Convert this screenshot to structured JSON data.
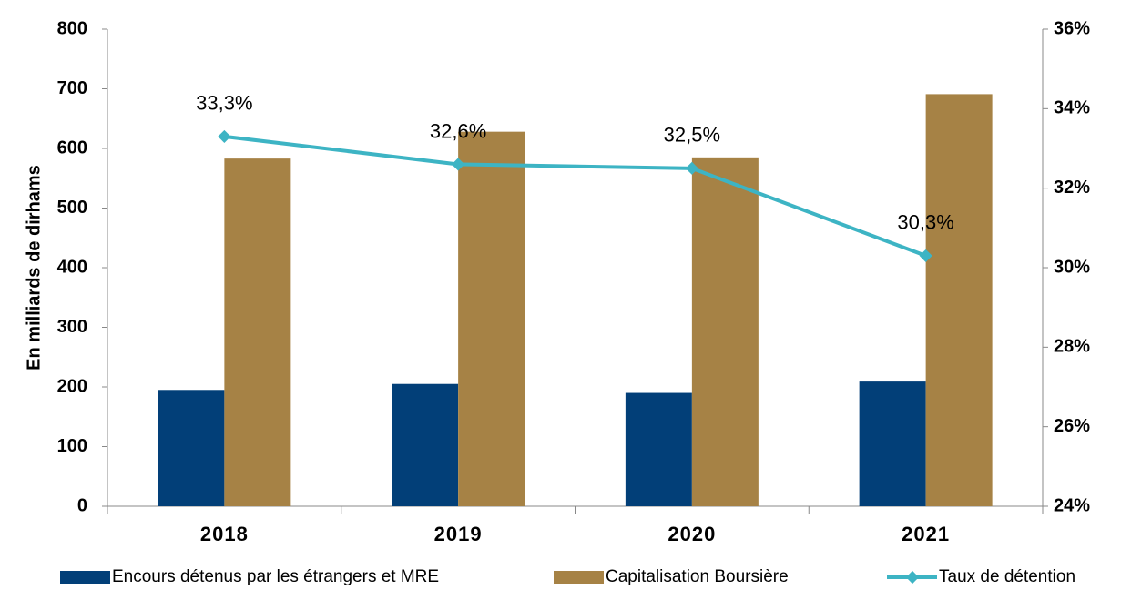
{
  "chart_data": {
    "type": "bar_line",
    "y_label": "En milliards de dirhams",
    "categories": [
      "2018",
      "2019",
      "2020",
      "2021"
    ],
    "series": [
      {
        "name": "Encours détenus par les étrangers et MRE",
        "color": "#023f78",
        "type": "bar",
        "values": [
          195,
          205,
          190,
          209
        ]
      },
      {
        "name": "Capitalisation Boursière",
        "color": "#a68245",
        "type": "bar",
        "values": [
          583,
          628,
          585,
          691
        ]
      },
      {
        "name": "Taux de détention",
        "color": "#3db4c4",
        "type": "line",
        "axis": "y2",
        "values": [
          33.3,
          32.6,
          32.5,
          30.3
        ],
        "value_labels": [
          "33,3%",
          "32,6%",
          "32,5%",
          "30,3%"
        ]
      }
    ],
    "ylim": [
      0,
      800
    ],
    "yticks": [
      0,
      100,
      200,
      300,
      400,
      500,
      600,
      700,
      800
    ],
    "y2lim": [
      24,
      36
    ],
    "y2ticks": [
      {
        "value": 24,
        "label": "24%"
      },
      {
        "value": 26,
        "label": "26%"
      },
      {
        "value": 28,
        "label": "28%"
      },
      {
        "value": 30,
        "label": "30%"
      },
      {
        "value": 32,
        "label": "32%"
      },
      {
        "value": 34,
        "label": "34%"
      },
      {
        "value": 36,
        "label": "36%"
      }
    ]
  }
}
